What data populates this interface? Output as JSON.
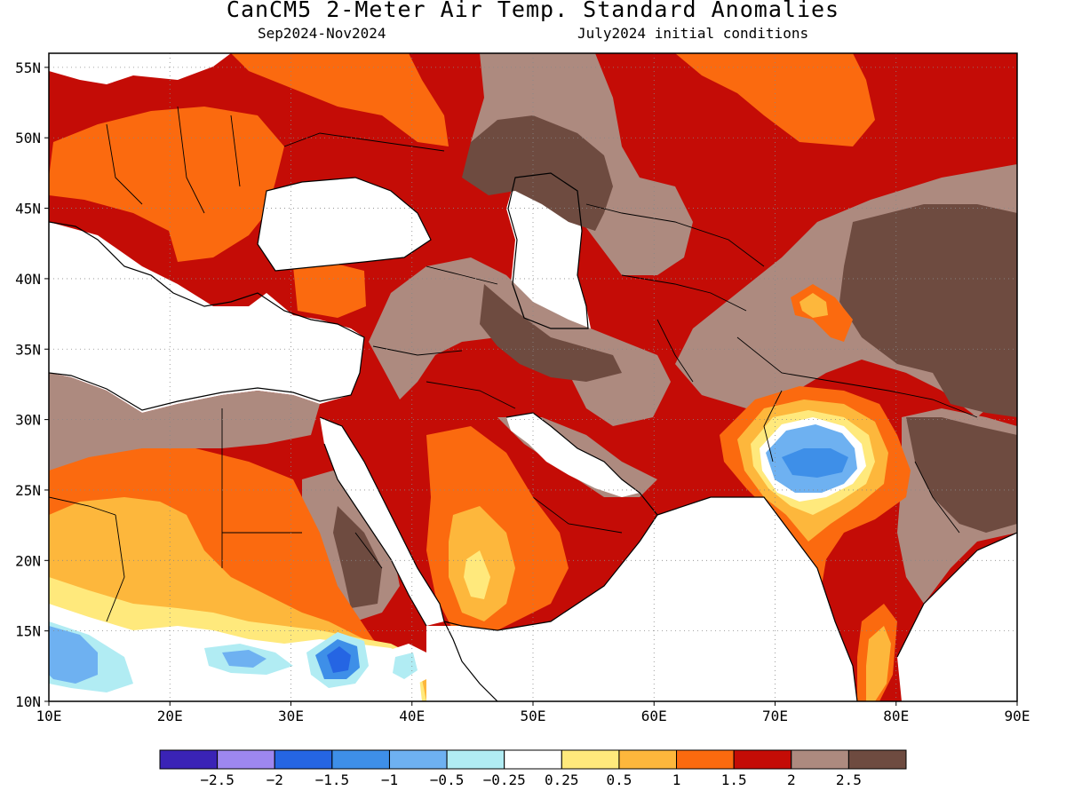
{
  "header": {
    "title": "CanCM5 2-Meter Air Temp. Standard Anomalies",
    "season": "Sep2024-Nov2024",
    "init": "July2024 initial conditions"
  },
  "axes": {
    "lat_labels": [
      "55N",
      "50N",
      "45N",
      "40N",
      "35N",
      "30N",
      "25N",
      "20N",
      "15N",
      "10N"
    ],
    "lon_labels": [
      "10E",
      "20E",
      "30E",
      "40E",
      "50E",
      "60E",
      "70E",
      "80E",
      "90E"
    ]
  },
  "legend": {
    "colors": [
      "#3a23b6",
      "#9d87f0",
      "#2565e3",
      "#3e8fe8",
      "#6eb1f1",
      "#b1ecf3",
      "#ffffff",
      "#ffe97c",
      "#fdb73c",
      "#fb6a0f",
      "#c40c06",
      "#ad8a7f",
      "#6e4b40"
    ],
    "labels": [
      "−2.5",
      "−2",
      "−1.5",
      "−1",
      "−0.5",
      "−0.25",
      "0.25",
      "0.5",
      "1",
      "1.5",
      "2",
      "2.5"
    ]
  },
  "palette": {
    "white": "#ffffff",
    "pale_blue": "#b1ecf3",
    "light_blue": "#6eb1f1",
    "blue": "#3e8fe8",
    "deep_blue": "#2565e3",
    "yellow": "#ffe97c",
    "light_orange": "#fdb73c",
    "orange": "#fb6a0f",
    "red": "#c40c06",
    "tan": "#ad8a7f",
    "brown": "#6e4b40"
  }
}
